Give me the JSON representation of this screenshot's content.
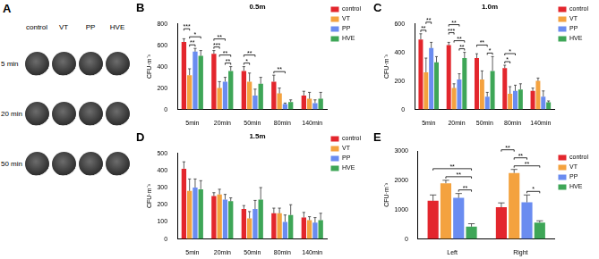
{
  "chart_data": [
    {
      "panel": "B",
      "type": "bar",
      "title": "0.5m",
      "y_label": "CFU·m⁻³",
      "categories": [
        "5min",
        "20min",
        "50min",
        "80min",
        "140min"
      ],
      "series": [
        {
          "name": "control",
          "color": "#e3262d",
          "values": [
            630,
            520,
            360,
            260,
            130
          ],
          "errors": [
            30,
            30,
            40,
            60,
            40
          ]
        },
        {
          "name": "VT",
          "color": "#f4a23f",
          "values": [
            320,
            200,
            260,
            150,
            100
          ],
          "errors": [
            60,
            60,
            80,
            50,
            60
          ]
        },
        {
          "name": "PP",
          "color": "#6a8cf0",
          "values": [
            540,
            260,
            130,
            50,
            60
          ],
          "errors": [
            30,
            40,
            60,
            10,
            30
          ]
        },
        {
          "name": "HVE",
          "color": "#3ea657",
          "values": [
            500,
            360,
            240,
            70,
            100
          ],
          "errors": [
            50,
            40,
            60,
            20,
            60
          ]
        }
      ],
      "ylim": [
        0,
        800
      ],
      "yticks": [
        0,
        200,
        400,
        600,
        800
      ],
      "grid": false,
      "legend": "right",
      "significance": [
        {
          "category": "5min",
          "between": [
            "VT",
            "PP"
          ],
          "label": "**"
        },
        {
          "category": "5min",
          "between": [
            "VT",
            "HVE"
          ],
          "label": "*"
        },
        {
          "category": "5min",
          "between": [
            "control",
            "VT"
          ],
          "label": "***"
        },
        {
          "category": "20min",
          "between": [
            "PP",
            "HVE"
          ],
          "label": "**"
        },
        {
          "category": "20min",
          "between": [
            "VT",
            "HVE"
          ],
          "label": "**"
        },
        {
          "category": "20min",
          "between": [
            "control",
            "VT"
          ],
          "label": "***"
        },
        {
          "category": "20min",
          "between": [
            "control",
            "PP"
          ],
          "label": "**"
        },
        {
          "category": "50min",
          "between": [
            "control",
            "VT"
          ],
          "label": "*"
        },
        {
          "category": "50min",
          "between": [
            "control",
            "PP"
          ],
          "label": "**"
        },
        {
          "category": "80min",
          "between": [
            "control",
            "PP"
          ],
          "label": "**"
        }
      ]
    },
    {
      "panel": "C",
      "type": "bar",
      "title": "1.0m",
      "y_label": "CFU·m⁻³",
      "categories": [
        "5min",
        "20min",
        "50min",
        "80min",
        "140min"
      ],
      "series": [
        {
          "name": "control",
          "color": "#e3262d",
          "values": [
            490,
            450,
            360,
            290,
            130
          ],
          "errors": [
            40,
            20,
            30,
            20,
            20
          ]
        },
        {
          "name": "VT",
          "color": "#f4a23f",
          "values": [
            260,
            150,
            210,
            110,
            200
          ],
          "errors": [
            100,
            30,
            60,
            50,
            20
          ]
        },
        {
          "name": "PP",
          "color": "#6a8cf0",
          "values": [
            430,
            210,
            90,
            130,
            90
          ],
          "errors": [
            40,
            40,
            30,
            40,
            40
          ]
        },
        {
          "name": "HVE",
          "color": "#3ea657",
          "values": [
            330,
            360,
            270,
            140,
            50
          ],
          "errors": [
            40,
            40,
            100,
            40,
            10
          ]
        }
      ],
      "ylim": [
        0,
        600
      ],
      "yticks": [
        0,
        200,
        400,
        600
      ],
      "grid": false,
      "legend": "right",
      "significance": [
        {
          "category": "5min",
          "between": [
            "control",
            "VT"
          ],
          "label": "**"
        },
        {
          "category": "5min",
          "between": [
            "VT",
            "PP"
          ],
          "label": "**"
        },
        {
          "category": "20min",
          "between": [
            "PP",
            "HVE"
          ],
          "label": "**"
        },
        {
          "category": "20min",
          "between": [
            "VT",
            "HVE"
          ],
          "label": "**"
        },
        {
          "category": "20min",
          "between": [
            "control",
            "VT"
          ],
          "label": "***"
        },
        {
          "category": "20min",
          "between": [
            "control",
            "PP"
          ],
          "label": "**"
        },
        {
          "category": "50min",
          "between": [
            "PP",
            "HVE"
          ],
          "label": "*"
        },
        {
          "category": "50min",
          "between": [
            "control",
            "PP"
          ],
          "label": "**"
        },
        {
          "category": "80min",
          "between": [
            "control",
            "VT"
          ],
          "label": "*"
        },
        {
          "category": "80min",
          "between": [
            "control",
            "PP"
          ],
          "label": "*"
        }
      ]
    },
    {
      "panel": "D",
      "type": "bar",
      "title": "1.5m",
      "y_label": "CFU·m⁻³",
      "categories": [
        "5min",
        "20min",
        "50min",
        "80min",
        "140min"
      ],
      "series": [
        {
          "name": "control",
          "color": "#e3262d",
          "values": [
            410,
            250,
            175,
            150,
            125
          ],
          "errors": [
            40,
            20,
            20,
            30,
            30
          ]
        },
        {
          "name": "VT",
          "color": "#f4a23f",
          "values": [
            280,
            260,
            120,
            150,
            110
          ],
          "errors": [
            70,
            30,
            40,
            30,
            20
          ]
        },
        {
          "name": "PP",
          "color": "#6a8cf0",
          "values": [
            300,
            230,
            175,
            100,
            95
          ],
          "errors": [
            50,
            30,
            50,
            40,
            30
          ]
        },
        {
          "name": "HVE",
          "color": "#3ea657",
          "values": [
            290,
            220,
            230,
            140,
            110
          ],
          "errors": [
            50,
            20,
            70,
            60,
            40
          ]
        }
      ],
      "ylim": [
        0,
        500
      ],
      "yticks": [
        0,
        100,
        200,
        300,
        400,
        500
      ],
      "grid": false,
      "legend": "right",
      "significance": []
    },
    {
      "panel": "E",
      "type": "bar",
      "y_label": "CFU·m⁻³",
      "categories": [
        "Left",
        "Right"
      ],
      "series": [
        {
          "name": "control",
          "color": "#e3262d",
          "values": [
            1300,
            1080
          ],
          "errors": [
            200,
            150
          ]
        },
        {
          "name": "VT",
          "color": "#f4a23f",
          "values": [
            1900,
            2250
          ],
          "errors": [
            100,
            120
          ]
        },
        {
          "name": "PP",
          "color": "#6a8cf0",
          "values": [
            1400,
            1250
          ],
          "errors": [
            150,
            250
          ]
        },
        {
          "name": "HVE",
          "color": "#3ea657",
          "values": [
            420,
            560
          ],
          "errors": [
            100,
            60
          ]
        }
      ],
      "ylim": [
        0,
        3000
      ],
      "yticks": [
        0,
        1000,
        2000,
        3000
      ],
      "grid": false,
      "legend": "right",
      "significance": [
        {
          "category": "Left",
          "between": [
            "PP",
            "HVE"
          ],
          "label": "**"
        },
        {
          "category": "Left",
          "between": [
            "VT",
            "HVE"
          ],
          "label": "**"
        },
        {
          "category": "Left",
          "between": [
            "control",
            "HVE"
          ],
          "label": "**"
        },
        {
          "category": "Right",
          "between": [
            "PP",
            "HVE"
          ],
          "label": "*"
        },
        {
          "category": "Right",
          "between": [
            "VT",
            "HVE"
          ],
          "label": "**"
        },
        {
          "category": "Right",
          "between": [
            "VT",
            "PP"
          ],
          "label": "**"
        },
        {
          "category": "Right",
          "between": [
            "control",
            "VT"
          ],
          "label": "**"
        }
      ]
    }
  ],
  "image_panel": {
    "panel": "A",
    "columns": [
      "control",
      "VT",
      "PP",
      "HVE"
    ],
    "rows": [
      "5 min",
      "20 min",
      "50 min"
    ]
  }
}
